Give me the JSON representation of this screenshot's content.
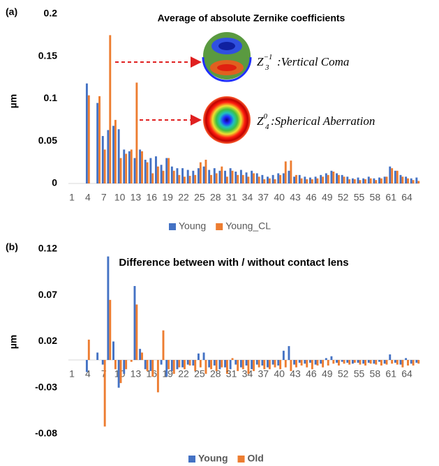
{
  "chart_data": [
    {
      "type": "bar",
      "panel_label": "(a)",
      "title": "Average of absolute Zernike coefficients",
      "y_label": "µm",
      "categories": [
        1,
        null,
        null,
        4,
        null,
        null,
        7,
        null,
        null,
        10,
        null,
        null,
        13,
        null,
        null,
        16,
        null,
        null,
        19,
        null,
        null,
        22,
        null,
        null,
        25,
        null,
        null,
        28,
        null,
        null,
        31,
        null,
        null,
        34,
        null,
        null,
        37,
        null,
        null,
        40,
        null,
        null,
        43,
        null,
        null,
        46,
        null,
        null,
        49,
        null,
        null,
        52,
        null,
        null,
        55,
        null,
        null,
        58,
        null,
        null,
        61,
        null,
        null,
        64,
        null,
        null
      ],
      "series": [
        {
          "name": "Young",
          "color": "#4472c4",
          "values": [
            0,
            0,
            0,
            0.118,
            0,
            0.095,
            0.056,
            0.063,
            0.068,
            0.064,
            0.04,
            0.038,
            0.03,
            0.04,
            0.028,
            0.03,
            0.032,
            0.022,
            0.03,
            0.02,
            0.018,
            0.018,
            0.016,
            0.015,
            0.018,
            0.02,
            0.016,
            0.018,
            0.015,
            0.015,
            0.018,
            0.014,
            0.016,
            0.013,
            0.015,
            0.012,
            0.01,
            0.008,
            0.01,
            0.012,
            0.012,
            0.015,
            0.008,
            0.01,
            0.008,
            0.007,
            0.008,
            0.01,
            0.012,
            0.015,
            0.012,
            0.01,
            0.008,
            0.006,
            0.007,
            0.006,
            0.008,
            0.006,
            0.007,
            0.008,
            0.02,
            0.015,
            0.01,
            0.008,
            0.006,
            0.007
          ]
        },
        {
          "name": "Young_CL",
          "color": "#ed7d31",
          "values": [
            0,
            0,
            0,
            0.104,
            0,
            0.103,
            0.04,
            0.175,
            0.075,
            0.03,
            0.035,
            0.04,
            0.119,
            0.038,
            0.025,
            0.012,
            0.02,
            0.015,
            0.03,
            0.015,
            0.01,
            0.008,
            0.009,
            0.01,
            0.025,
            0.028,
            0.01,
            0.012,
            0.02,
            0.008,
            0.015,
            0.01,
            0.01,
            0.008,
            0.012,
            0.008,
            0.005,
            0.006,
            0.005,
            0.01,
            0.026,
            0.027,
            0.01,
            0.006,
            0.005,
            0.005,
            0.006,
            0.008,
            0.01,
            0.014,
            0.01,
            0.008,
            0.005,
            0.005,
            0.004,
            0.005,
            0.006,
            0.004,
            0.006,
            0.008,
            0.018,
            0.015,
            0.008,
            0.006,
            0.004,
            0.003
          ]
        }
      ],
      "ylim": [
        0,
        0.2
      ],
      "yticks": [
        0,
        0.05,
        0.1,
        0.15,
        0.2
      ],
      "grid": false,
      "legend": "bottom",
      "annotations": [
        {
          "symbol": "Z",
          "sub": "3",
          "sup": "−1",
          "text": ":Vertical Coma"
        },
        {
          "symbol": "Z",
          "sub": "4",
          "sup": "0",
          "text": ":Spherical Aberration"
        }
      ]
    },
    {
      "type": "bar",
      "panel_label": "(b)",
      "title": "Difference between with / without contact lens",
      "y_label": "µm",
      "categories": [
        1,
        null,
        null,
        4,
        null,
        null,
        7,
        null,
        null,
        10,
        null,
        null,
        13,
        null,
        null,
        16,
        null,
        null,
        19,
        null,
        null,
        22,
        null,
        null,
        25,
        null,
        null,
        28,
        null,
        null,
        31,
        null,
        null,
        34,
        null,
        null,
        37,
        null,
        null,
        40,
        null,
        null,
        43,
        null,
        null,
        46,
        null,
        null,
        49,
        null,
        null,
        52,
        null,
        null,
        55,
        null,
        null,
        58,
        null,
        null,
        61,
        null,
        null,
        64,
        null,
        null
      ],
      "series": [
        {
          "name": "Young",
          "color": "#4472c4",
          "values": [
            0,
            0,
            0,
            -0.013,
            0,
            0.008,
            -0.005,
            0.112,
            0.02,
            -0.03,
            -0.015,
            0,
            0.08,
            0.012,
            -0.01,
            -0.012,
            0,
            -0.005,
            -0.018,
            -0.012,
            -0.01,
            -0.008,
            -0.005,
            -0.006,
            0.007,
            0.008,
            -0.008,
            -0.006,
            -0.01,
            -0.008,
            -0.01,
            -0.005,
            -0.008,
            -0.006,
            -0.01,
            -0.005,
            -0.006,
            -0.008,
            -0.005,
            -0.006,
            0.01,
            0.015,
            -0.005,
            -0.003,
            -0.004,
            -0.003,
            -0.005,
            -0.004,
            0.002,
            0.004,
            -0.003,
            -0.002,
            -0.003,
            -0.004,
            -0.003,
            -0.004,
            -0.003,
            -0.004,
            -0.002,
            -0.004,
            0.006,
            -0.003,
            -0.005,
            0.002,
            -0.004,
            -0.003
          ]
        },
        {
          "name": "Old",
          "color": "#ed7d31",
          "values": [
            0,
            0,
            0,
            0.022,
            0,
            0,
            -0.072,
            0.065,
            -0.01,
            -0.025,
            -0.01,
            -0.002,
            0.06,
            0.008,
            -0.012,
            -0.018,
            -0.035,
            0.032,
            -0.01,
            -0.015,
            -0.008,
            -0.01,
            -0.006,
            -0.012,
            -0.008,
            -0.015,
            -0.01,
            -0.012,
            -0.008,
            -0.015,
            0.002,
            -0.012,
            -0.01,
            -0.015,
            -0.012,
            -0.008,
            -0.01,
            -0.01,
            -0.008,
            -0.01,
            -0.008,
            -0.012,
            -0.008,
            -0.006,
            -0.008,
            -0.01,
            -0.006,
            -0.008,
            -0.006,
            -0.004,
            -0.006,
            -0.004,
            -0.005,
            -0.003,
            -0.005,
            -0.006,
            -0.004,
            -0.005,
            -0.006,
            -0.005,
            -0.004,
            -0.005,
            -0.008,
            -0.006,
            -0.006,
            -0.004
          ]
        }
      ],
      "ylim": [
        -0.08,
        0.12
      ],
      "yticks": [
        -0.08,
        -0.03,
        0.02,
        0.07,
        0.12
      ],
      "grid": false,
      "legend": "bottom"
    }
  ]
}
